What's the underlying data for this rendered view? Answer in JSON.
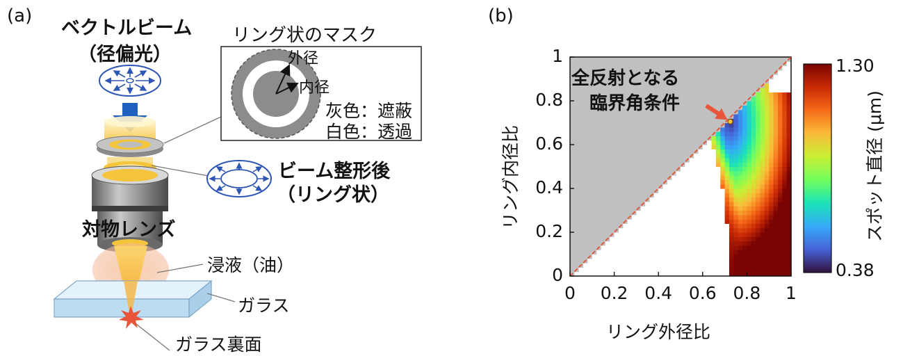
{
  "panel_a": {
    "label": "(a)",
    "beam_title": "ベクトルビーム",
    "beam_subtitle": "（径偏光）",
    "mask_title": "リング状のマスク",
    "mask_outer": "外径",
    "mask_inner": "内径",
    "mask_gray": "灰色：遮蔽",
    "mask_white": "白色：透過",
    "shaped_line1": "ビーム整形後",
    "shaped_line2": "（リング状）",
    "objective": "対物レンズ",
    "immersion": "浸液（油）",
    "glass": "ガラス",
    "glass_back": "ガラス裏面",
    "colors": {
      "beam_arrow": "#1f5fbf",
      "ring_gold": "#f2c230",
      "mask_gray": "#8c8c8c",
      "glass": "#cfe6f7",
      "spark": "#e8553b"
    }
  },
  "panel_b": {
    "label": "(b)",
    "annotation_line1": "全反射となる",
    "annotation_line2": "臨界角条件",
    "colorbar_label": "スポット直径 (μm)",
    "colorbar_max": "1.30",
    "colorbar_min": "0.38"
  },
  "chart_data": {
    "type": "heatmap",
    "xlabel": "リング外径比",
    "ylabel": "リング内径比",
    "xlim": [
      0,
      1
    ],
    "ylim": [
      0,
      1
    ],
    "xticks": [
      "0",
      "0.2",
      "0.4",
      "0.6",
      "0.8",
      "1"
    ],
    "yticks": [
      "0",
      "0.2",
      "0.4",
      "0.6",
      "0.8",
      "1"
    ],
    "colorscale_range": [
      0.38,
      1.3
    ],
    "colorscale": [
      "#30123b",
      "#4662d7",
      "#36aaf9",
      "#1ae4b6",
      "#72fe5e",
      "#c8ef34",
      "#faba39",
      "#f66b19",
      "#ca2a04",
      "#7a0403"
    ],
    "invalid_region_color": "#c0c0c0",
    "critical_angle_point": {
      "x": 0.725,
      "y": 0.705
    },
    "critical_line_color": "#e05a3a"
  }
}
